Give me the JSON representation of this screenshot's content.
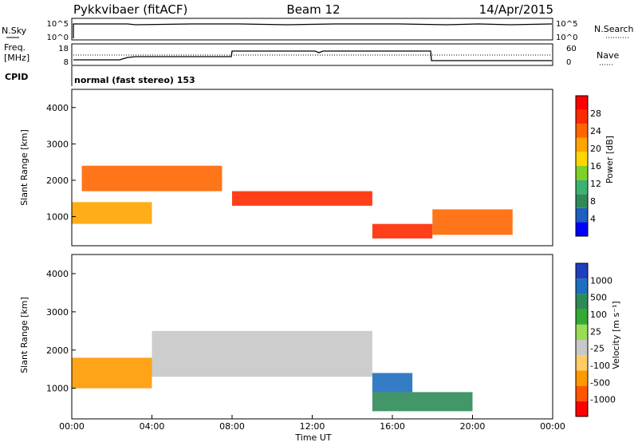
{
  "header": {
    "station": "Pykkvibaer (fitACF)",
    "beam": "Beam 12",
    "date": "14/Apr/2015"
  },
  "time_axis": {
    "ticks": [
      "00:00",
      "04:00",
      "08:00",
      "12:00",
      "16:00",
      "20:00",
      "00:00"
    ],
    "label": "Time UT"
  },
  "status": {
    "left_top_label": "N.Sky",
    "left_top_ticks": [
      "10^5",
      "10^0"
    ],
    "right_top_label": "N.Search",
    "right_top_ticks": [
      "10^5",
      "10^0"
    ],
    "freq_label_line1": "Freq.",
    "freq_label_line2": "[MHz]",
    "freq_ticks": [
      "18",
      "8"
    ],
    "nave_ticks": [
      "60",
      "0"
    ],
    "nave_label": "Nave",
    "cpid_label": "CPID",
    "cpid_text": "normal (fast stereo) 153"
  },
  "power_panel": {
    "ylabel": "Slant Range [km]",
    "yticks": [
      "4000",
      "3000",
      "2000",
      "1000"
    ],
    "colorbar_label": "Power [dB]",
    "colorbar_ticks": [
      "28",
      "24",
      "20",
      "16",
      "12",
      "8",
      "4"
    ],
    "colors": [
      "#0000ff",
      "#1f5fbf",
      "#2e8b57",
      "#3cb371",
      "#7fd12a",
      "#ffd700",
      "#ffa500",
      "#ff6600",
      "#ff2a00",
      "#ff0000"
    ]
  },
  "velocity_panel": {
    "ylabel": "Slant Range [km]",
    "yticks": [
      "4000",
      "3000",
      "2000",
      "1000"
    ],
    "colorbar_label": "Velocity [m s⁻¹]",
    "colorbar_ticks": [
      "1000",
      "500",
      "100",
      "25",
      "-25",
      "-100",
      "-500",
      "-1000"
    ],
    "colors": [
      "#ff0000",
      "#ff5500",
      "#ff9900",
      "#ffcc66",
      "#c8c8c8",
      "#99dd55",
      "#33aa33",
      "#2e8b57",
      "#1e6fbf",
      "#1f3fbf"
    ]
  },
  "chart_data": {
    "type": "heatmap",
    "x_range": [
      "00:00",
      "24:00"
    ],
    "y_range_km": [
      200,
      4500
    ],
    "power_bands": [
      {
        "t0": 0,
        "t1": 4,
        "r0": 800,
        "r1": 1400,
        "db": 20
      },
      {
        "t0": 0.5,
        "t1": 7.5,
        "r0": 1700,
        "r1": 2400,
        "db": 24
      },
      {
        "t0": 8,
        "t1": 15,
        "r0": 1300,
        "r1": 1700,
        "db": 26
      },
      {
        "t0": 15,
        "t1": 18,
        "r0": 400,
        "r1": 800,
        "db": 28
      },
      {
        "t0": 18,
        "t1": 22,
        "r0": 500,
        "r1": 1200,
        "db": 24
      }
    ],
    "velocity_bands": [
      {
        "t0": 0,
        "t1": 4,
        "r0": 1000,
        "r1": 1800,
        "v": -300
      },
      {
        "t0": 4,
        "t1": 15,
        "r0": 1300,
        "r1": 2500,
        "v": 0
      },
      {
        "t0": 15,
        "t1": 20,
        "r0": 400,
        "r1": 900,
        "v": 150
      },
      {
        "t0": 15,
        "t1": 17,
        "r0": 900,
        "r1": 1400,
        "v": 600
      }
    ]
  }
}
